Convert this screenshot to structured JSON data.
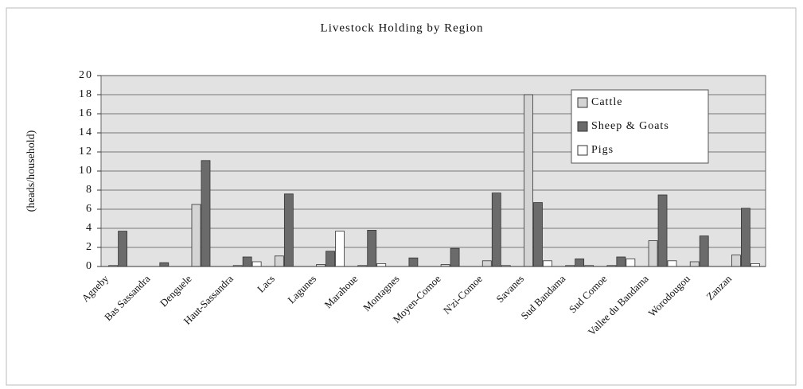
{
  "chart_data": {
    "type": "bar",
    "title": "Livestock Holding by Region",
    "y_label": "(heads/household)",
    "categories": [
      "Agneby",
      "Bas Sassandra",
      "Denguele",
      "Haut-Sassandra",
      "Lacs",
      "Lagunes",
      "Marahoue",
      "Montagnes",
      "Moyen-Comoe",
      "N'zi-Comoe",
      "Savanes",
      "Sud Bandama",
      "Sud Comoe",
      "Vallee du Bandama",
      "Worodougou",
      "Zanzan"
    ],
    "series": [
      {
        "name": "Cattle",
        "color": "#d4d4d4",
        "values": [
          0.1,
          0,
          6.5,
          0.1,
          1.1,
          0.2,
          0.1,
          0,
          0.2,
          0.6,
          18,
          0.1,
          0.1,
          2.7,
          0.5,
          1.2
        ]
      },
      {
        "name": "Sheep & Goats",
        "color": "#6b6b6b",
        "values": [
          3.7,
          0.4,
          11.1,
          1.0,
          7.6,
          1.6,
          3.8,
          0.9,
          1.9,
          7.7,
          6.7,
          0.8,
          1.0,
          7.5,
          3.2,
          6.1
        ]
      },
      {
        "name": "Pigs",
        "color": "#ffffff",
        "values": [
          0,
          0,
          0,
          0.5,
          0,
          3.7,
          0.3,
          0,
          0,
          0.1,
          0.6,
          0.1,
          0.8,
          0.6,
          0,
          0.3
        ]
      }
    ],
    "ylim": [
      0,
      20
    ],
    "yticks": [
      0,
      2,
      4,
      6,
      8,
      10,
      12,
      14,
      16,
      18,
      20
    ],
    "grid": true,
    "legend": "top-right"
  }
}
